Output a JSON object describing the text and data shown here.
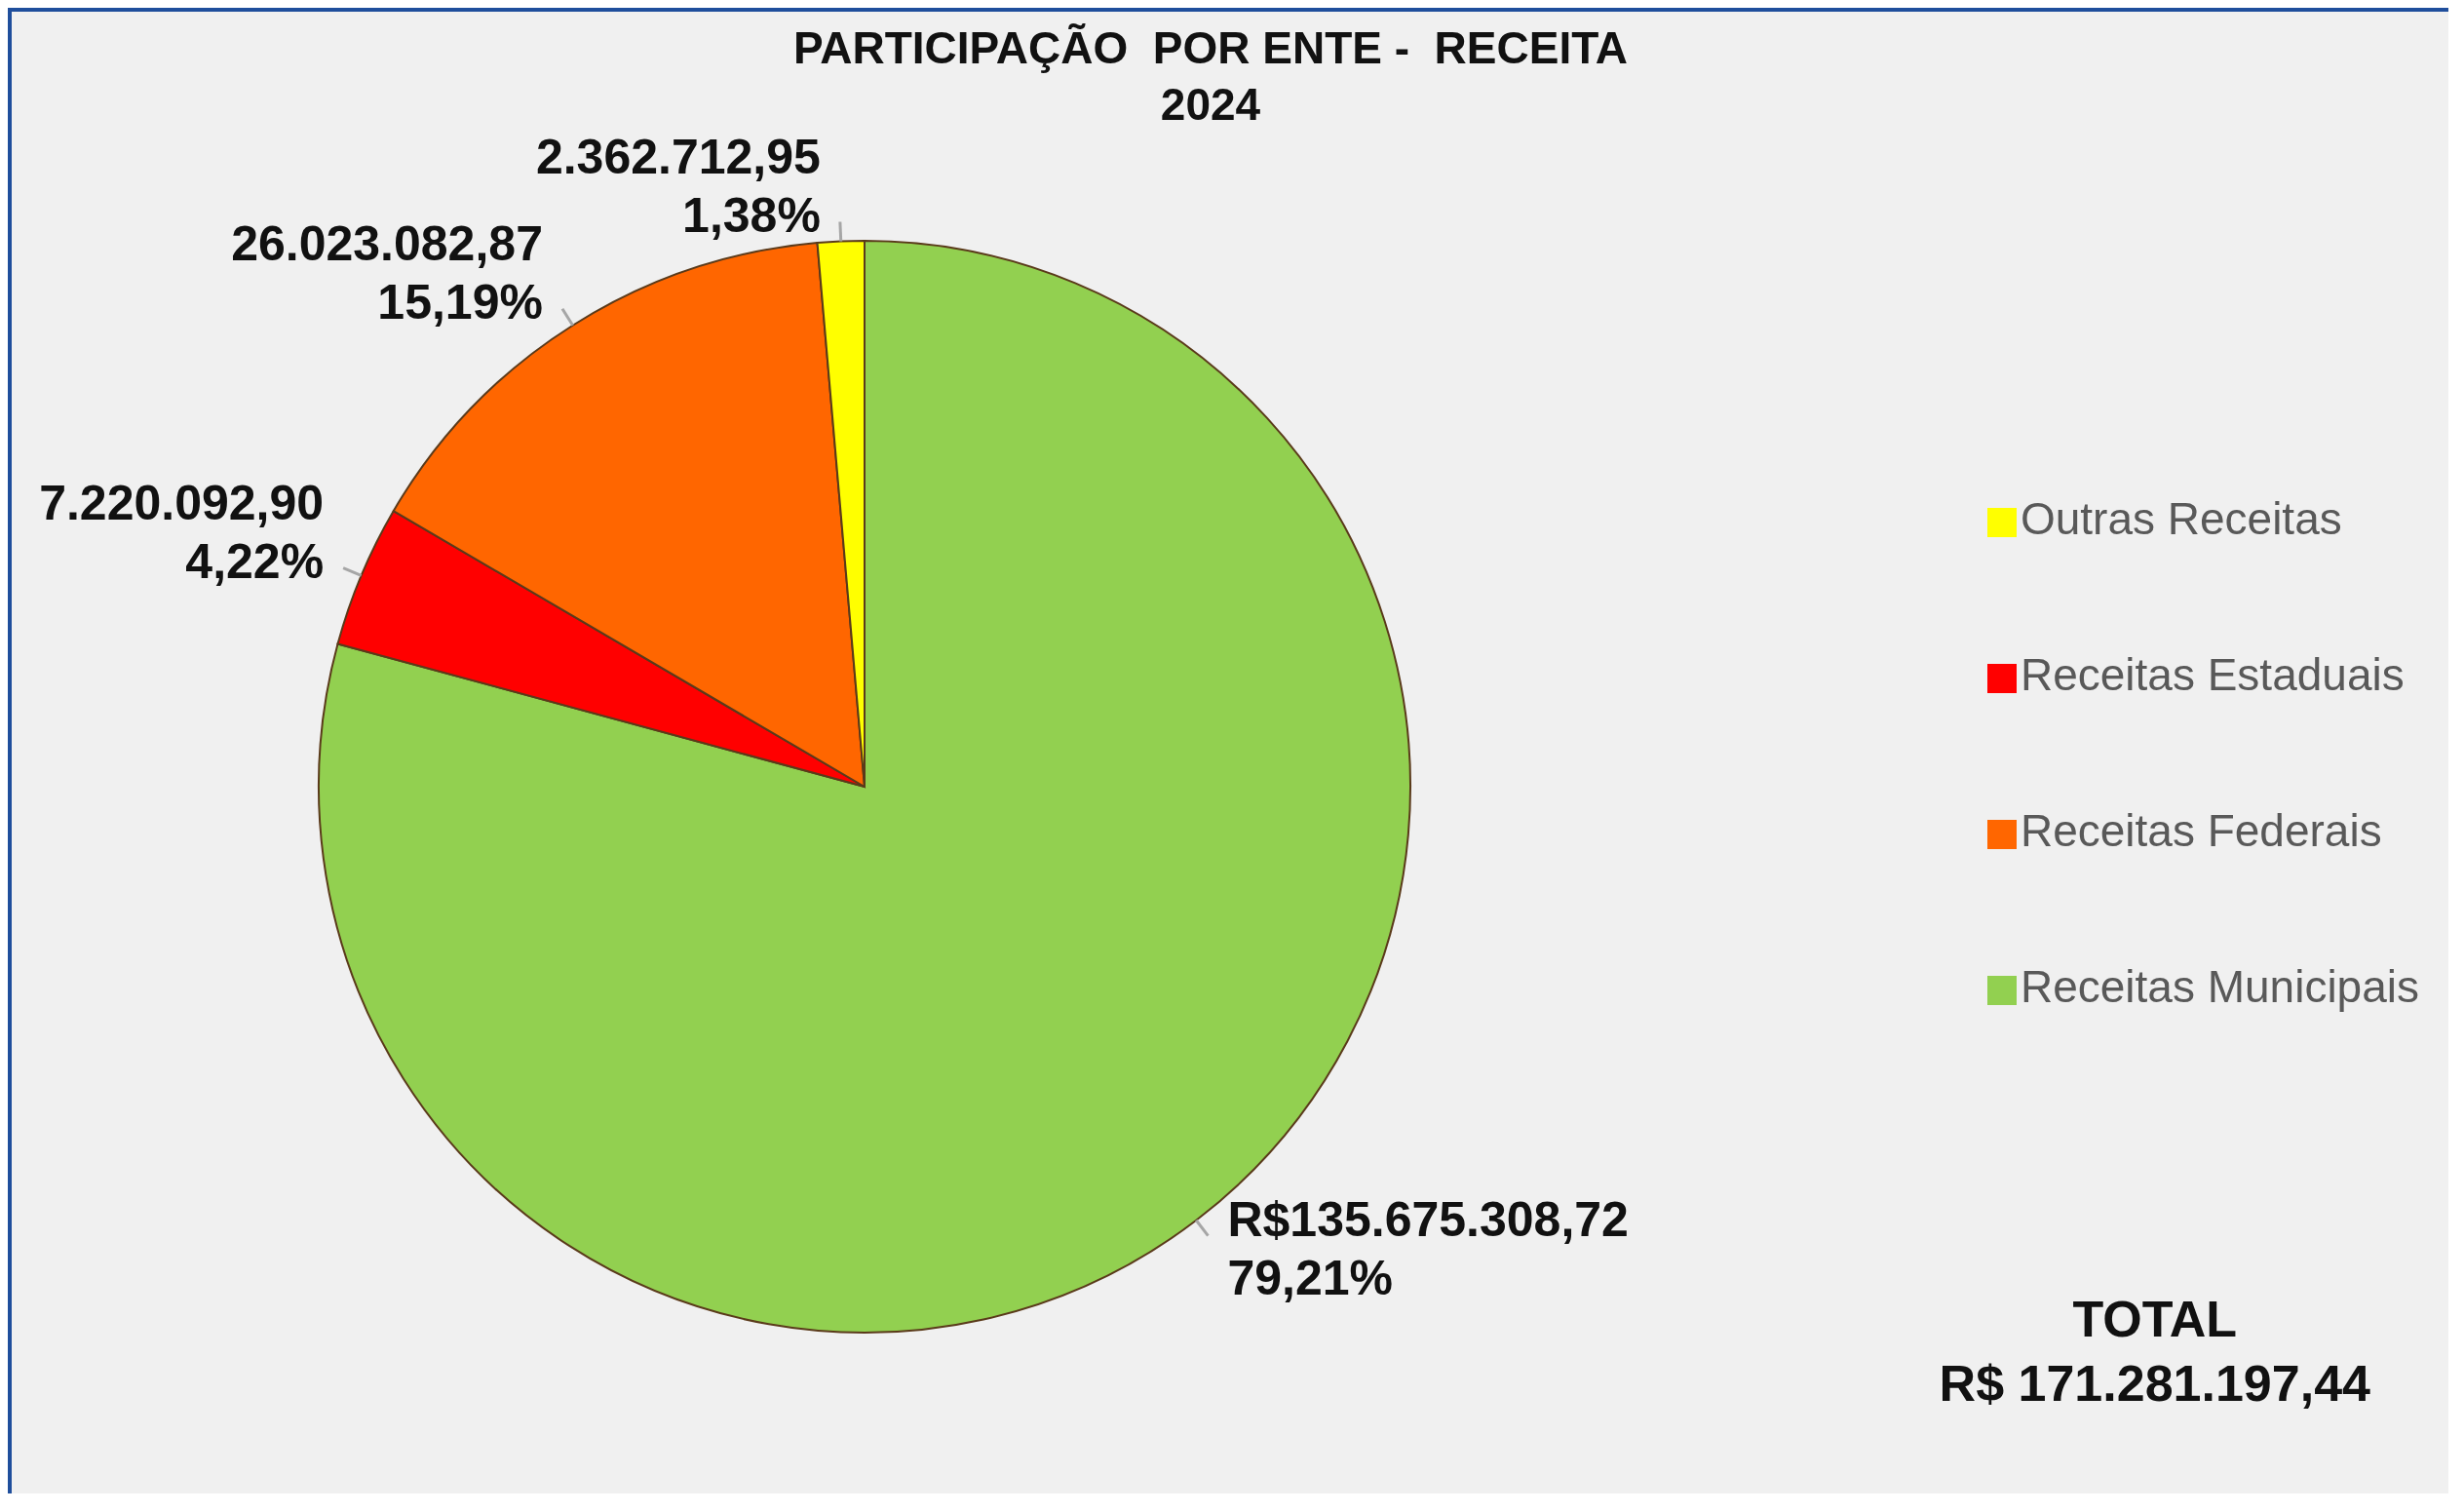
{
  "chart_data": {
    "type": "pie",
    "title": "PARTICIPAÇÃO  POR ENTE -  RECEITA",
    "subtitle": "2024",
    "categories": [
      "Receitas Municipais",
      "Receitas Estaduais",
      "Receitas Federais",
      "Outras Receitas"
    ],
    "values": [
      135675308.72,
      7220092.9,
      26023082.87,
      2362712.95
    ],
    "colors": [
      "#92d050",
      "#ff0000",
      "#ff6600",
      "#ffff00"
    ],
    "value_labels": [
      "R$135.675.308,72\n79,21%",
      "7.220.092,90\n4,22%",
      "26.023.082,87\n15,19%",
      "2.362.712,95\n1,38%"
    ],
    "legend": "right",
    "annotations": [
      "TOTAL\nR$ 171.281.197,44"
    ]
  }
}
